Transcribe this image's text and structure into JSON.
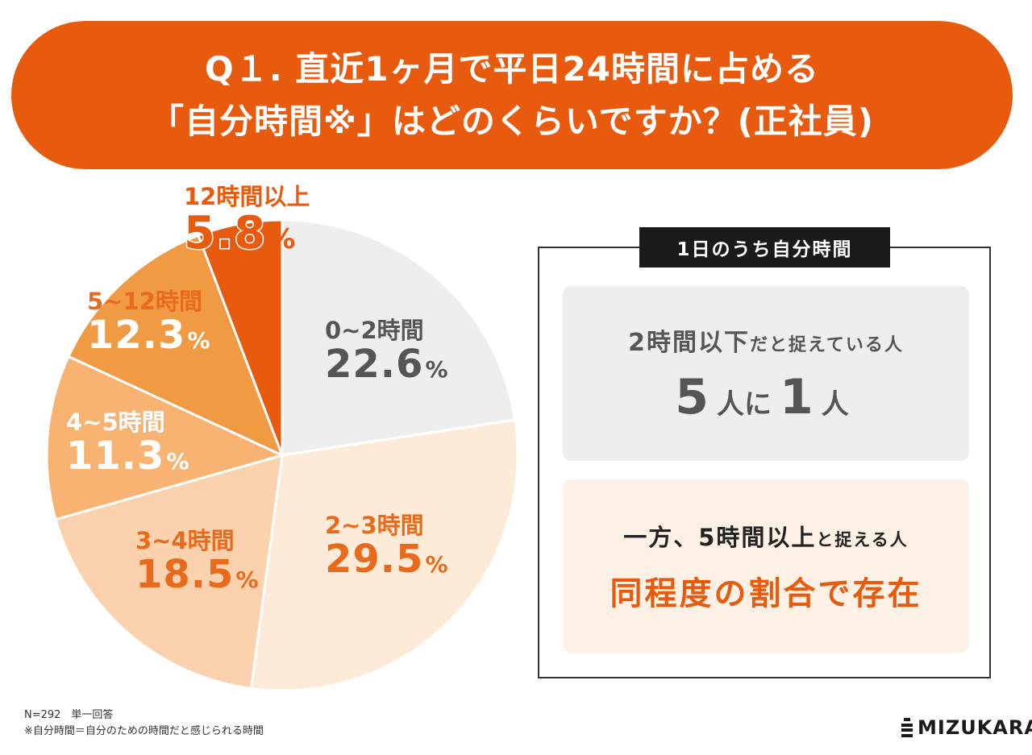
{
  "title": {
    "line1": "Q１. 直近1ヶ月で平日24時間に占める",
    "line2": "「自分時間※」はどのくらいですか？(正社員)"
  },
  "chart_data": {
    "type": "pie",
    "categories": [
      "0~2時間",
      "2~3時間",
      "3~4時間",
      "4~5時間",
      "5~12時間",
      "12時間以上"
    ],
    "values": [
      22.6,
      29.5,
      18.5,
      11.3,
      12.3,
      5.8
    ],
    "labels": [
      "22.6",
      "29.5",
      "18.5",
      "11.3",
      "12.3",
      "5.8"
    ],
    "unit": "%",
    "colors": [
      "#eeeeee",
      "#fdebd8",
      "#fbd2ad",
      "#f8b372",
      "#f09a44",
      "#e85a0d"
    ]
  },
  "summary": {
    "box_title": "1日のうち自分時間",
    "card1": {
      "lead_bold": "2時間以下",
      "lead_rest": "だと捉えている人",
      "n1": "5",
      "mid": "人に",
      "n2": "1",
      "end": "人"
    },
    "card2": {
      "lead_pre": "一方、",
      "lead_bold": "5時間以上",
      "lead_rest": "と捉える人",
      "highlight": "同程度の割合で存在"
    }
  },
  "footnote": {
    "sample": "N=292　単一回答",
    "note": "※自分時間＝自分のための時間だと感じられる時間"
  },
  "brand": "MIZUKARA"
}
